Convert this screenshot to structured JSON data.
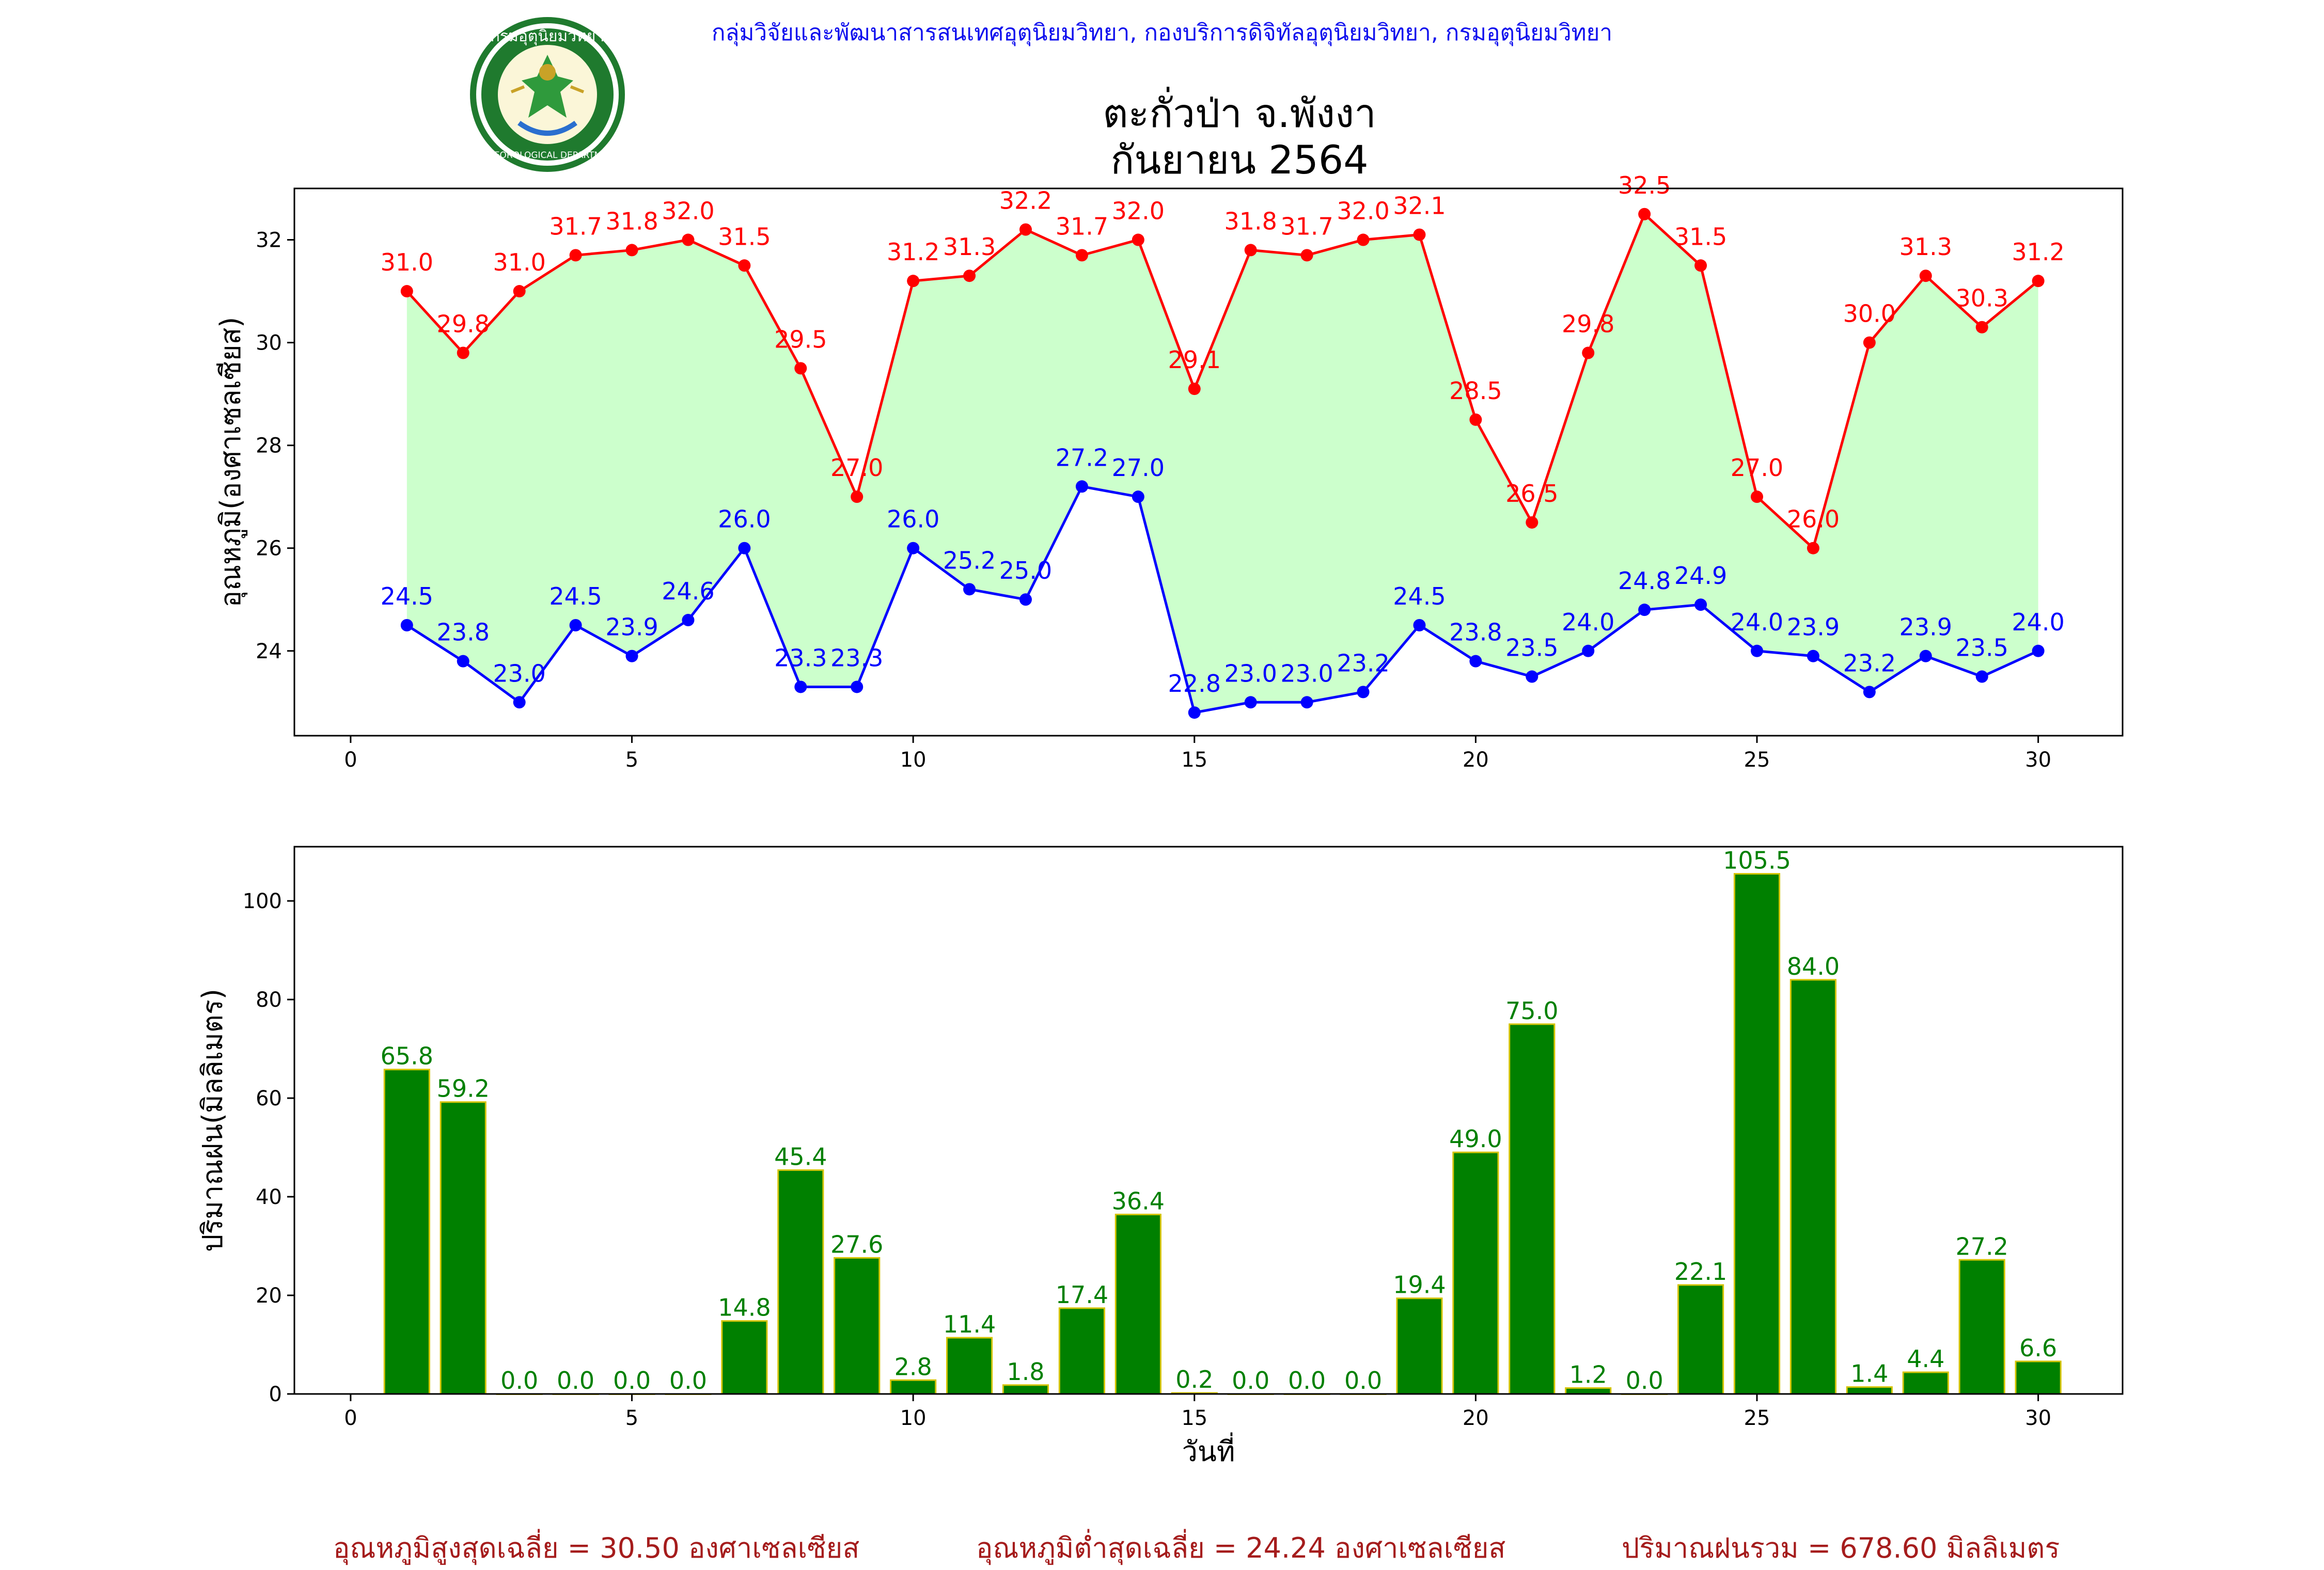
{
  "header": {
    "credit": "กลุ่มวิจัยและพัฒนาสารสนเทศอุตุนิยมวิทยา, กองบริการดิจิทัลอุตุนิยมวิทยา, กรมอุตุนิยมวิทยา",
    "title_line1": "ตะกั่วป่า จ.พังงา",
    "title_line2": "กันยายน 2564",
    "logo_icon": "meteorological-department-logo-icon",
    "logo_text_top": "กรมอุตุนิยมวิทยา",
    "logo_text_bottom": "METEOROLOGICAL DEPARTMENT"
  },
  "summary": {
    "max_avg": "อุณหภูมิสูงสุดเฉลี่ย = 30.50 องศาเซลเซียส",
    "min_avg": "อุณหภูมิต่ำสุดเฉลี่ย = 24.24 องศาเซลเซียส",
    "rain_total": "ปริมาณฝนรวม = 678.60 มิลลิเมตร"
  },
  "chart_data": [
    {
      "type": "line",
      "ylabel": "อุณหภูมิ(องศาเซลเซียส)",
      "xlabel": "",
      "xlim": [
        -1,
        31.5
      ],
      "ylim": [
        22.35,
        33.0
      ],
      "xticks": [
        0,
        5,
        10,
        15,
        20,
        25,
        30
      ],
      "yticks": [
        24,
        26,
        28,
        30,
        32
      ],
      "grid": false,
      "fill_between": {
        "color": "#ccffcc"
      },
      "x": [
        1,
        2,
        3,
        4,
        5,
        6,
        7,
        8,
        9,
        10,
        11,
        12,
        13,
        14,
        15,
        16,
        17,
        18,
        19,
        20,
        21,
        22,
        23,
        24,
        25,
        26,
        27,
        28,
        29,
        30
      ],
      "series": [
        {
          "color": "#ff0000",
          "values": [
            31.0,
            29.8,
            31.0,
            31.7,
            31.8,
            32.0,
            31.5,
            29.5,
            27.0,
            31.2,
            31.3,
            32.2,
            31.7,
            32.0,
            29.1,
            31.8,
            31.7,
            32.0,
            32.1,
            28.5,
            26.5,
            29.8,
            32.5,
            31.5,
            27.0,
            26.0,
            30.0,
            31.3,
            30.3,
            31.2
          ]
        },
        {
          "color": "#0000ff",
          "values": [
            24.5,
            23.8,
            23.0,
            24.5,
            23.9,
            24.6,
            26.0,
            23.3,
            23.3,
            26.0,
            25.2,
            25.0,
            27.2,
            27.0,
            22.8,
            23.0,
            23.0,
            23.2,
            24.5,
            23.8,
            23.5,
            24.0,
            24.8,
            24.9,
            24.0,
            23.9,
            23.2,
            23.9,
            23.5,
            24.0
          ]
        }
      ]
    },
    {
      "type": "bar",
      "ylabel": "ปริมาณฝน(มิลลิเมตร)",
      "xlabel": "วันที่",
      "xlim": [
        -1,
        31.5
      ],
      "ylim": [
        0,
        111
      ],
      "xticks": [
        0,
        5,
        10,
        15,
        20,
        25,
        30
      ],
      "yticks": [
        0,
        20,
        40,
        60,
        80,
        100
      ],
      "grid": false,
      "bar_color": "#008000",
      "edge_color": "#d4c400",
      "label_color": "#008000",
      "categories": [
        1,
        2,
        3,
        4,
        5,
        6,
        7,
        8,
        9,
        10,
        11,
        12,
        13,
        14,
        15,
        16,
        17,
        18,
        19,
        20,
        21,
        22,
        23,
        24,
        25,
        26,
        27,
        28,
        29,
        30
      ],
      "values": [
        65.8,
        59.2,
        0.0,
        0.0,
        0.0,
        0.0,
        14.8,
        45.4,
        27.6,
        2.8,
        11.4,
        1.8,
        17.4,
        36.4,
        0.2,
        0.0,
        0.0,
        0.0,
        19.4,
        49.0,
        75.0,
        1.2,
        0.0,
        22.1,
        105.5,
        84.0,
        1.4,
        4.4,
        27.2,
        6.6
      ]
    }
  ]
}
